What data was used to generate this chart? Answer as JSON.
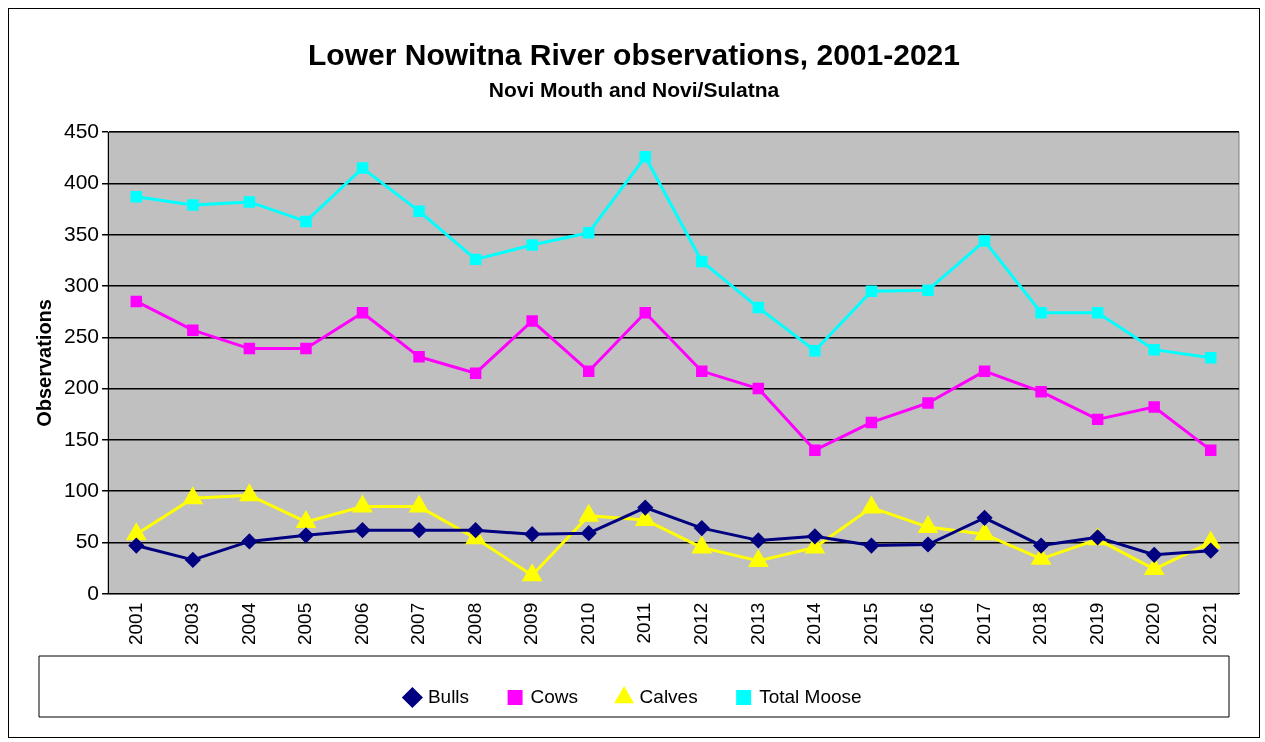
{
  "chart_data": {
    "type": "line",
    "title": "Lower Nowitna River observations, 2001-2021",
    "subtitle": "Novi Mouth and Novi/Sulatna",
    "ylabel": "Observations",
    "categories": [
      "2001",
      "2003",
      "2004",
      "2005",
      "2006",
      "2007",
      "2008",
      "2009",
      "2010",
      "2011",
      "2012",
      "2013",
      "2014",
      "2015",
      "2016",
      "2017",
      "2018",
      "2019",
      "2020",
      "2021"
    ],
    "series": [
      {
        "name": "Bulls",
        "color": "#000080",
        "marker": "diamond",
        "values": [
          47,
          33,
          51,
          57,
          62,
          62,
          62,
          58,
          59,
          84,
          64,
          52,
          56,
          47,
          48,
          74,
          47,
          55,
          38,
          42
        ]
      },
      {
        "name": "Cows",
        "color": "#ff00ff",
        "marker": "square",
        "values": [
          285,
          257,
          239,
          239,
          274,
          231,
          215,
          266,
          217,
          274,
          217,
          200,
          140,
          167,
          186,
          217,
          197,
          170,
          182,
          140
        ]
      },
      {
        "name": "Calves",
        "color": "#ffff00",
        "marker": "triangle",
        "values": [
          58,
          93,
          96,
          70,
          85,
          85,
          54,
          18,
          76,
          72,
          45,
          32,
          45,
          84,
          65,
          58,
          34,
          53,
          24,
          50
        ]
      },
      {
        "name": "Total Moose",
        "color": "#00ffff",
        "marker": "square",
        "values": [
          387,
          379,
          382,
          363,
          415,
          373,
          326,
          340,
          352,
          426,
          324,
          279,
          237,
          295,
          296,
          344,
          274,
          274,
          238,
          230
        ]
      }
    ],
    "ylim": [
      0,
      450
    ],
    "yticks": [
      0,
      50,
      100,
      150,
      200,
      250,
      300,
      350,
      400,
      450
    ],
    "grid": "y",
    "legend": "bottom"
  }
}
